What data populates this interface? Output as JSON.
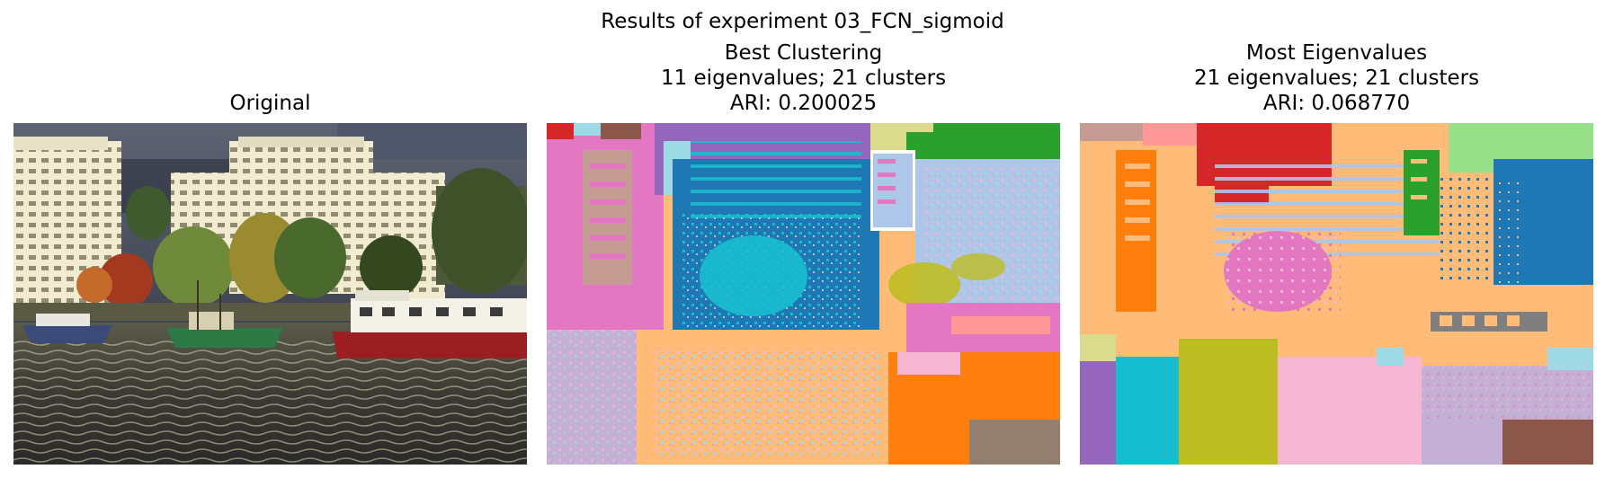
{
  "figure": {
    "suptitle": "Results of experiment 03_FCN_sigmoid"
  },
  "panels": [
    {
      "id": "original",
      "title_lines": [
        "Original"
      ],
      "content": "photo"
    },
    {
      "id": "best",
      "title_lines": [
        "Best Clustering",
        "11 eigenvalues; 21 clusters",
        "ARI: 0.200025"
      ],
      "content": "segmentation"
    },
    {
      "id": "most",
      "title_lines": [
        "Most Eigenvalues",
        "21 eigenvalues; 21 clusters",
        "ARI: 0.068770"
      ],
      "content": "segmentation"
    }
  ],
  "palette": {
    "blue": "#1f77b4",
    "orange": "#ff7f0e",
    "green": "#2ca02c",
    "red": "#d62728",
    "purple": "#9467bd",
    "brown": "#8c564b",
    "pink": "#e377c2",
    "gray": "#7f7f7f",
    "olive": "#bcbd22",
    "cyan": "#17becf",
    "light_blue": "#aec7e8",
    "light_orange": "#ffbb78",
    "light_green": "#98df8a",
    "light_red": "#ff9896",
    "light_purple": "#c5b0d5",
    "light_brown": "#c49c94",
    "light_pink": "#f7b6d2",
    "light_olive": "#dbdb8d",
    "light_cyan": "#9edae5"
  }
}
